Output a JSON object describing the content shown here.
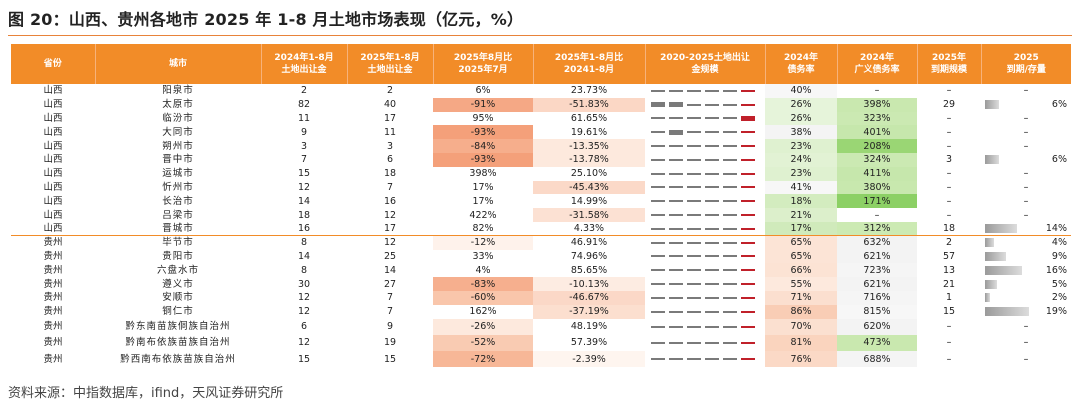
{
  "title": "图 20：山西、贵州各地市 2025 年 1-8 月土地市场表现（亿元，%）",
  "source": "资料来源：中指数据库，ifind，天风证券研究所",
  "headers": [
    "省份",
    "城市",
    "2024年1-8月\n土地出让金",
    "2025年1-8月\n土地出让金",
    "2025年8月比\n2025年7月",
    "2025年1-8月比\n20241-8月",
    "2020-2025土地出让\n金规模",
    "2024年\n债务率",
    "2024年\n广义债务率",
    "2025年\n到期规模",
    "2025\n到期/存量"
  ],
  "colors": {
    "header": "#f28c28",
    "neg_strong": "#f4a07a",
    "neg_mid": "#f7bb9b",
    "neg_light": "#fbdccb",
    "neg_pale": "#fde9dd",
    "green_strong": "#8cd065",
    "green_mid": "#aedd8a",
    "green_light": "#c6e7ac",
    "green_pale": "#ddf0cd",
    "neutral": "#f1f1f1"
  },
  "rows": [
    {
      "prov": "山西",
      "city": "阳泉市",
      "y24": "2",
      "y25": "2",
      "mom": "6%",
      "yoy": "23.73%",
      "scale": [
        0,
        0,
        0,
        0,
        0,
        0
      ],
      "debt": "40%",
      "gdebt": "–",
      "mat": "–",
      "ratio": "–",
      "ratio_pct": 0,
      "mom_c": "",
      "yoy_c": "",
      "debt_c": "#f7f7f7",
      "gdebt_c": ""
    },
    {
      "prov": "山西",
      "city": "太原市",
      "y24": "82",
      "y25": "40",
      "mom": "-91%",
      "yoy": "-51.83%",
      "scale": [
        1,
        1,
        0,
        0,
        0,
        0
      ],
      "debt": "26%",
      "gdebt": "398%",
      "mat": "29",
      "ratio": "6%",
      "ratio_pct": 0.06,
      "mom_c": "#f5a885",
      "yoy_c": "#fbd7c5",
      "debt_c": "#e6f4da",
      "gdebt_c": "#c9e8af"
    },
    {
      "prov": "山西",
      "city": "临汾市",
      "y24": "11",
      "y25": "17",
      "mom": "95%",
      "yoy": "61.65%",
      "scale": [
        0,
        0,
        0,
        0,
        0,
        1
      ],
      "debt": "26%",
      "gdebt": "323%",
      "mat": "–",
      "ratio": "–",
      "ratio_pct": 0,
      "mom_c": "",
      "yoy_c": "",
      "debt_c": "#e6f4da",
      "gdebt_c": "#cbe9b2"
    },
    {
      "prov": "山西",
      "city": "大同市",
      "y24": "9",
      "y25": "11",
      "mom": "-93%",
      "yoy": "19.61%",
      "scale": [
        0,
        1,
        0,
        0,
        0,
        0
      ],
      "debt": "38%",
      "gdebt": "401%",
      "mat": "–",
      "ratio": "–",
      "ratio_pct": 0,
      "mom_c": "#f4a07a",
      "yoy_c": "",
      "debt_c": "#f4f4f4",
      "gdebt_c": "#c6e7ac"
    },
    {
      "prov": "山西",
      "city": "朔州市",
      "y24": "3",
      "y25": "3",
      "mom": "-84%",
      "yoy": "-13.35%",
      "scale": [
        0,
        0,
        0,
        0,
        0,
        0
      ],
      "debt": "23%",
      "gdebt": "208%",
      "mat": "–",
      "ratio": "–",
      "ratio_pct": 0,
      "mom_c": "#f6ae8c",
      "yoy_c": "#fde9dd",
      "debt_c": "#dff1d0",
      "gdebt_c": "#9ad674"
    },
    {
      "prov": "山西",
      "city": "晋中市",
      "y24": "7",
      "y25": "6",
      "mom": "-93%",
      "yoy": "-13.78%",
      "scale": [
        0,
        0,
        0,
        0,
        0,
        0
      ],
      "debt": "24%",
      "gdebt": "324%",
      "mat": "3",
      "ratio": "6%",
      "ratio_pct": 0.06,
      "mom_c": "#f4a07a",
      "yoy_c": "#fde9dd",
      "debt_c": "#e2f2d4",
      "gdebt_c": "#cbe9b2"
    },
    {
      "prov": "山西",
      "city": "运城市",
      "y24": "15",
      "y25": "18",
      "mom": "398%",
      "yoy": "25.10%",
      "scale": [
        0,
        0,
        0,
        0,
        0,
        0
      ],
      "debt": "23%",
      "gdebt": "411%",
      "mat": "–",
      "ratio": "–",
      "ratio_pct": 0,
      "mom_c": "",
      "yoy_c": "",
      "debt_c": "#dff1d0",
      "gdebt_c": "#c6e7ac"
    },
    {
      "prov": "山西",
      "city": "忻州市",
      "y24": "12",
      "y25": "7",
      "mom": "17%",
      "yoy": "-45.43%",
      "scale": [
        0,
        0,
        0,
        0,
        0,
        0
      ],
      "debt": "41%",
      "gdebt": "380%",
      "mat": "–",
      "ratio": "–",
      "ratio_pct": 0,
      "mom_c": "",
      "yoy_c": "#fbd9c8",
      "debt_c": "#f7f7f7",
      "gdebt_c": "#c8e8ae"
    },
    {
      "prov": "山西",
      "city": "长治市",
      "y24": "14",
      "y25": "16",
      "mom": "17%",
      "yoy": "14.99%",
      "scale": [
        0,
        0,
        0,
        0,
        0,
        0
      ],
      "debt": "18%",
      "gdebt": "171%",
      "mat": "–",
      "ratio": "–",
      "ratio_pct": 0,
      "mom_c": "",
      "yoy_c": "",
      "debt_c": "#d3ecbf",
      "gdebt_c": "#8cd065"
    },
    {
      "prov": "山西",
      "city": "吕梁市",
      "y24": "18",
      "y25": "12",
      "mom": "422%",
      "yoy": "-31.58%",
      "scale": [
        0,
        0,
        0,
        0,
        0,
        0
      ],
      "debt": "21%",
      "gdebt": "–",
      "mat": "–",
      "ratio": "–",
      "ratio_pct": 0,
      "mom_c": "",
      "yoy_c": "#fce1d3",
      "debt_c": "#dcefcb",
      "gdebt_c": ""
    },
    {
      "prov": "山西",
      "city": "晋城市",
      "y24": "16",
      "y25": "17",
      "mom": "82%",
      "yoy": "4.33%",
      "scale": [
        0,
        0,
        0,
        0,
        0,
        0
      ],
      "debt": "17%",
      "gdebt": "312%",
      "mat": "18",
      "ratio": "14%",
      "ratio_pct": 0.14,
      "mom_c": "",
      "yoy_c": "",
      "debt_c": "#d0eabb",
      "gdebt_c": "#cceab3"
    },
    {
      "prov": "贵州",
      "city": "毕节市",
      "y24": "8",
      "y25": "12",
      "mom": "-12%",
      "yoy": "46.91%",
      "scale": [
        0,
        0,
        0,
        0,
        0,
        0
      ],
      "debt": "65%",
      "gdebt": "632%",
      "mat": "2",
      "ratio": "4%",
      "ratio_pct": 0.04,
      "mom_c": "#fef2eb",
      "yoy_c": "",
      "debt_c": "#fce4d6",
      "gdebt_c": "#f3f3f3"
    },
    {
      "prov": "贵州",
      "city": "贵阳市",
      "y24": "14",
      "y25": "25",
      "mom": "33%",
      "yoy": "74.96%",
      "scale": [
        0,
        0,
        0,
        0,
        0,
        0
      ],
      "debt": "65%",
      "gdebt": "621%",
      "mat": "57",
      "ratio": "9%",
      "ratio_pct": 0.09,
      "mom_c": "",
      "yoy_c": "",
      "debt_c": "#fce4d6",
      "gdebt_c": "#f3f3f3"
    },
    {
      "prov": "贵州",
      "city": "六盘水市",
      "y24": "8",
      "y25": "14",
      "mom": "4%",
      "yoy": "85.65%",
      "scale": [
        0,
        0,
        0,
        0,
        0,
        0
      ],
      "debt": "66%",
      "gdebt": "723%",
      "mat": "13",
      "ratio": "16%",
      "ratio_pct": 0.16,
      "mom_c": "",
      "yoy_c": "",
      "debt_c": "#fce3d4",
      "gdebt_c": "#f5f5f5"
    },
    {
      "prov": "贵州",
      "city": "遵义市",
      "y24": "30",
      "y25": "27",
      "mom": "-83%",
      "yoy": "-10.13%",
      "scale": [
        0,
        0,
        0,
        0,
        0,
        0
      ],
      "debt": "55%",
      "gdebt": "621%",
      "mat": "21",
      "ratio": "5%",
      "ratio_pct": 0.05,
      "mom_c": "#f6af8e",
      "yoy_c": "#fdece2",
      "debt_c": "#fde9dd",
      "gdebt_c": "#f3f3f3"
    },
    {
      "prov": "贵州",
      "city": "安顺市",
      "y24": "12",
      "y25": "7",
      "mom": "-60%",
      "yoy": "-46.67%",
      "scale": [
        0,
        0,
        0,
        0,
        0,
        0
      ],
      "debt": "71%",
      "gdebt": "716%",
      "mat": "1",
      "ratio": "2%",
      "ratio_pct": 0.02,
      "mom_c": "#f9c6ab",
      "yoy_c": "#fbd8c7",
      "debt_c": "#fbdfcf",
      "gdebt_c": "#f5f5f5"
    },
    {
      "prov": "贵州",
      "city": "铜仁市",
      "y24": "12",
      "y25": "7",
      "mom": "162%",
      "yoy": "-37.19%",
      "scale": [
        0,
        0,
        0,
        0,
        0,
        0
      ],
      "debt": "86%",
      "gdebt": "815%",
      "mat": "15",
      "ratio": "19%",
      "ratio_pct": 0.19,
      "mom_c": "",
      "yoy_c": "#fcdfcf",
      "debt_c": "#f9cdb5",
      "gdebt_c": "#f7f7f7"
    },
    {
      "prov": "贵州",
      "city": "黔东南苗族侗族自治州",
      "y24": "6",
      "y25": "9",
      "mom": "-26%",
      "yoy": "48.19%",
      "scale": [
        0,
        0,
        0,
        0,
        0,
        0
      ],
      "debt": "70%",
      "gdebt": "620%",
      "mat": "–",
      "ratio": "–",
      "ratio_pct": 0,
      "mom_c": "#fde9dd",
      "yoy_c": "",
      "debt_c": "#fbe0d0",
      "gdebt_c": "#f3f3f3"
    },
    {
      "prov": "贵州",
      "city": "黔南布依族苗族自治州",
      "y24": "12",
      "y25": "19",
      "mom": "-52%",
      "yoy": "57.39%",
      "scale": [
        0,
        0,
        0,
        0,
        0,
        0
      ],
      "debt": "81%",
      "gdebt": "473%",
      "mat": "–",
      "ratio": "–",
      "ratio_pct": 0,
      "mom_c": "#f9cbb2",
      "yoy_c": "",
      "debt_c": "#fad4be",
      "gdebt_c": "#c9e8af"
    },
    {
      "prov": "贵州",
      "city": "黔西南布依族苗族自治州",
      "y24": "15",
      "y25": "15",
      "mom": "-72%",
      "yoy": "-2.39%",
      "scale": [
        0,
        0,
        0,
        0,
        0,
        0
      ],
      "debt": "76%",
      "gdebt": "688%",
      "mat": "–",
      "ratio": "–",
      "ratio_pct": 0,
      "mom_c": "#f7b797",
      "yoy_c": "#fef5ef",
      "debt_c": "#fbd9c6",
      "gdebt_c": "#f4f4f4"
    }
  ]
}
